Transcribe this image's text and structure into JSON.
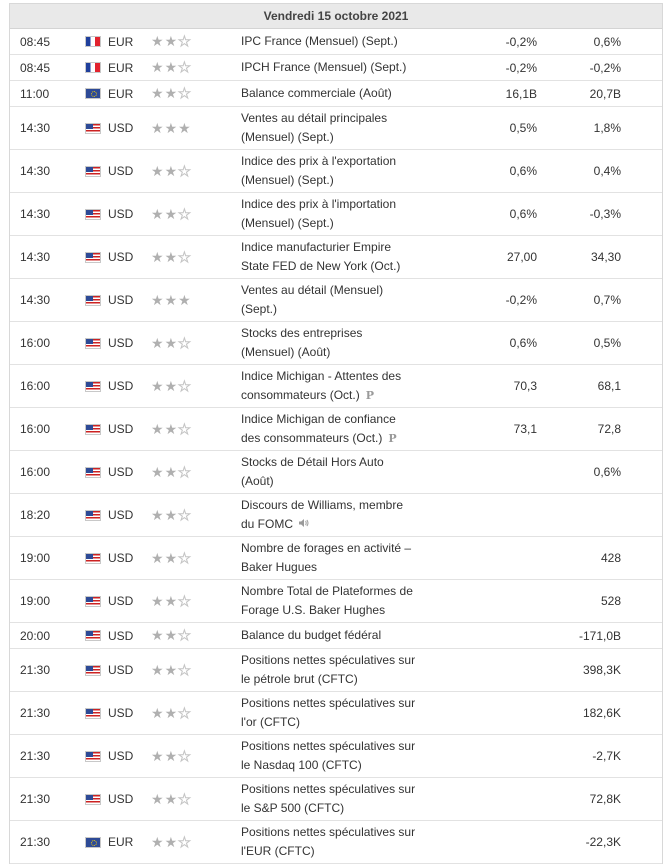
{
  "header": {
    "date": "Vendredi 15 octobre 2021"
  },
  "colors": {
    "star_filled": "#b0b0b0",
    "header_bg": "#e9e9e9"
  },
  "rows": [
    {
      "time": "08:45",
      "flag": "fr",
      "currency": "EUR",
      "stars": 2,
      "event": [
        "IPC France (Mensuel) (Sept.)"
      ],
      "actual": "-0,2%",
      "previous": "0,6%"
    },
    {
      "time": "08:45",
      "flag": "fr",
      "currency": "EUR",
      "stars": 2,
      "event": [
        "IPCH France (Mensuel) (Sept.)"
      ],
      "actual": "-0,2%",
      "previous": "-0,2%"
    },
    {
      "time": "11:00",
      "flag": "eu",
      "currency": "EUR",
      "stars": 2,
      "event": [
        "Balance commerciale (Août)"
      ],
      "actual": "16,1B",
      "previous": "20,7B"
    },
    {
      "time": "14:30",
      "flag": "us",
      "currency": "USD",
      "stars": 3,
      "event": [
        "Ventes au détail principales",
        "(Mensuel) (Sept.)"
      ],
      "actual": "0,5%",
      "previous": "1,8%"
    },
    {
      "time": "14:30",
      "flag": "us",
      "currency": "USD",
      "stars": 2,
      "event": [
        "Indice des prix à l'exportation",
        "(Mensuel) (Sept.)"
      ],
      "actual": "0,6%",
      "previous": "0,4%"
    },
    {
      "time": "14:30",
      "flag": "us",
      "currency": "USD",
      "stars": 2,
      "event": [
        "Indice des prix à l'importation",
        "(Mensuel) (Sept.)"
      ],
      "actual": "0,6%",
      "previous": "-0,3%"
    },
    {
      "time": "14:30",
      "flag": "us",
      "currency": "USD",
      "stars": 2,
      "event": [
        "Indice manufacturier Empire",
        "State FED de New York (Oct.)"
      ],
      "actual": "27,00",
      "previous": "34,30"
    },
    {
      "time": "14:30",
      "flag": "us",
      "currency": "USD",
      "stars": 3,
      "event": [
        "Ventes au détail (Mensuel)",
        "(Sept.)"
      ],
      "actual": "-0,2%",
      "previous": "0,7%"
    },
    {
      "time": "16:00",
      "flag": "us",
      "currency": "USD",
      "stars": 2,
      "event": [
        "Stocks des entreprises",
        "(Mensuel) (Août)"
      ],
      "actual": "0,6%",
      "previous": "0,5%"
    },
    {
      "time": "16:00",
      "flag": "us",
      "currency": "USD",
      "stars": 2,
      "event": [
        "Indice Michigan - Attentes des",
        "consommateurs (Oct.)"
      ],
      "icon": "preliminary-icon",
      "actual": "70,3",
      "previous": "68,1"
    },
    {
      "time": "16:00",
      "flag": "us",
      "currency": "USD",
      "stars": 2,
      "event": [
        "Indice Michigan de confiance",
        "des consommateurs (Oct.)"
      ],
      "icon": "preliminary-icon",
      "actual": "73,1",
      "previous": "72,8"
    },
    {
      "time": "16:00",
      "flag": "us",
      "currency": "USD",
      "stars": 2,
      "event": [
        "Stocks de Détail Hors Auto",
        "(Août)"
      ],
      "actual": "",
      "previous": "0,6%"
    },
    {
      "time": "18:20",
      "flag": "us",
      "currency": "USD",
      "stars": 2,
      "event": [
        "Discours de Williams, membre",
        "du FOMC"
      ],
      "icon": "speaker-icon",
      "actual": "",
      "previous": ""
    },
    {
      "time": "19:00",
      "flag": "us",
      "currency": "USD",
      "stars": 2,
      "event": [
        "Nombre de forages en activité –",
        "Baker Hugues"
      ],
      "actual": "",
      "previous": "428"
    },
    {
      "time": "19:00",
      "flag": "us",
      "currency": "USD",
      "stars": 2,
      "event": [
        "Nombre Total de Plateformes de",
        "Forage U.S. Baker Hughes"
      ],
      "actual": "",
      "previous": "528"
    },
    {
      "time": "20:00",
      "flag": "us",
      "currency": "USD",
      "stars": 2,
      "event": [
        "Balance du budget fédéral"
      ],
      "actual": "",
      "previous": "-171,0B"
    },
    {
      "time": "21:30",
      "flag": "us",
      "currency": "USD",
      "stars": 2,
      "event": [
        "Positions nettes spéculatives sur",
        "le pétrole brut (CFTC)"
      ],
      "actual": "",
      "previous": "398,3K"
    },
    {
      "time": "21:30",
      "flag": "us",
      "currency": "USD",
      "stars": 2,
      "event": [
        "Positions nettes spéculatives sur",
        "l'or (CFTC)"
      ],
      "actual": "",
      "previous": "182,6K"
    },
    {
      "time": "21:30",
      "flag": "us",
      "currency": "USD",
      "stars": 2,
      "event": [
        "Positions nettes spéculatives sur",
        "le Nasdaq 100 (CFTC)"
      ],
      "actual": "",
      "previous": "-2,7K"
    },
    {
      "time": "21:30",
      "flag": "us",
      "currency": "USD",
      "stars": 2,
      "event": [
        "Positions nettes spéculatives sur",
        "le S&P 500 (CFTC)"
      ],
      "actual": "",
      "previous": "72,8K"
    },
    {
      "time": "21:30",
      "flag": "eu",
      "currency": "EUR",
      "stars": 2,
      "event": [
        "Positions nettes spéculatives sur",
        "l'EUR (CFTC)"
      ],
      "actual": "",
      "previous": "-22,3K"
    }
  ]
}
